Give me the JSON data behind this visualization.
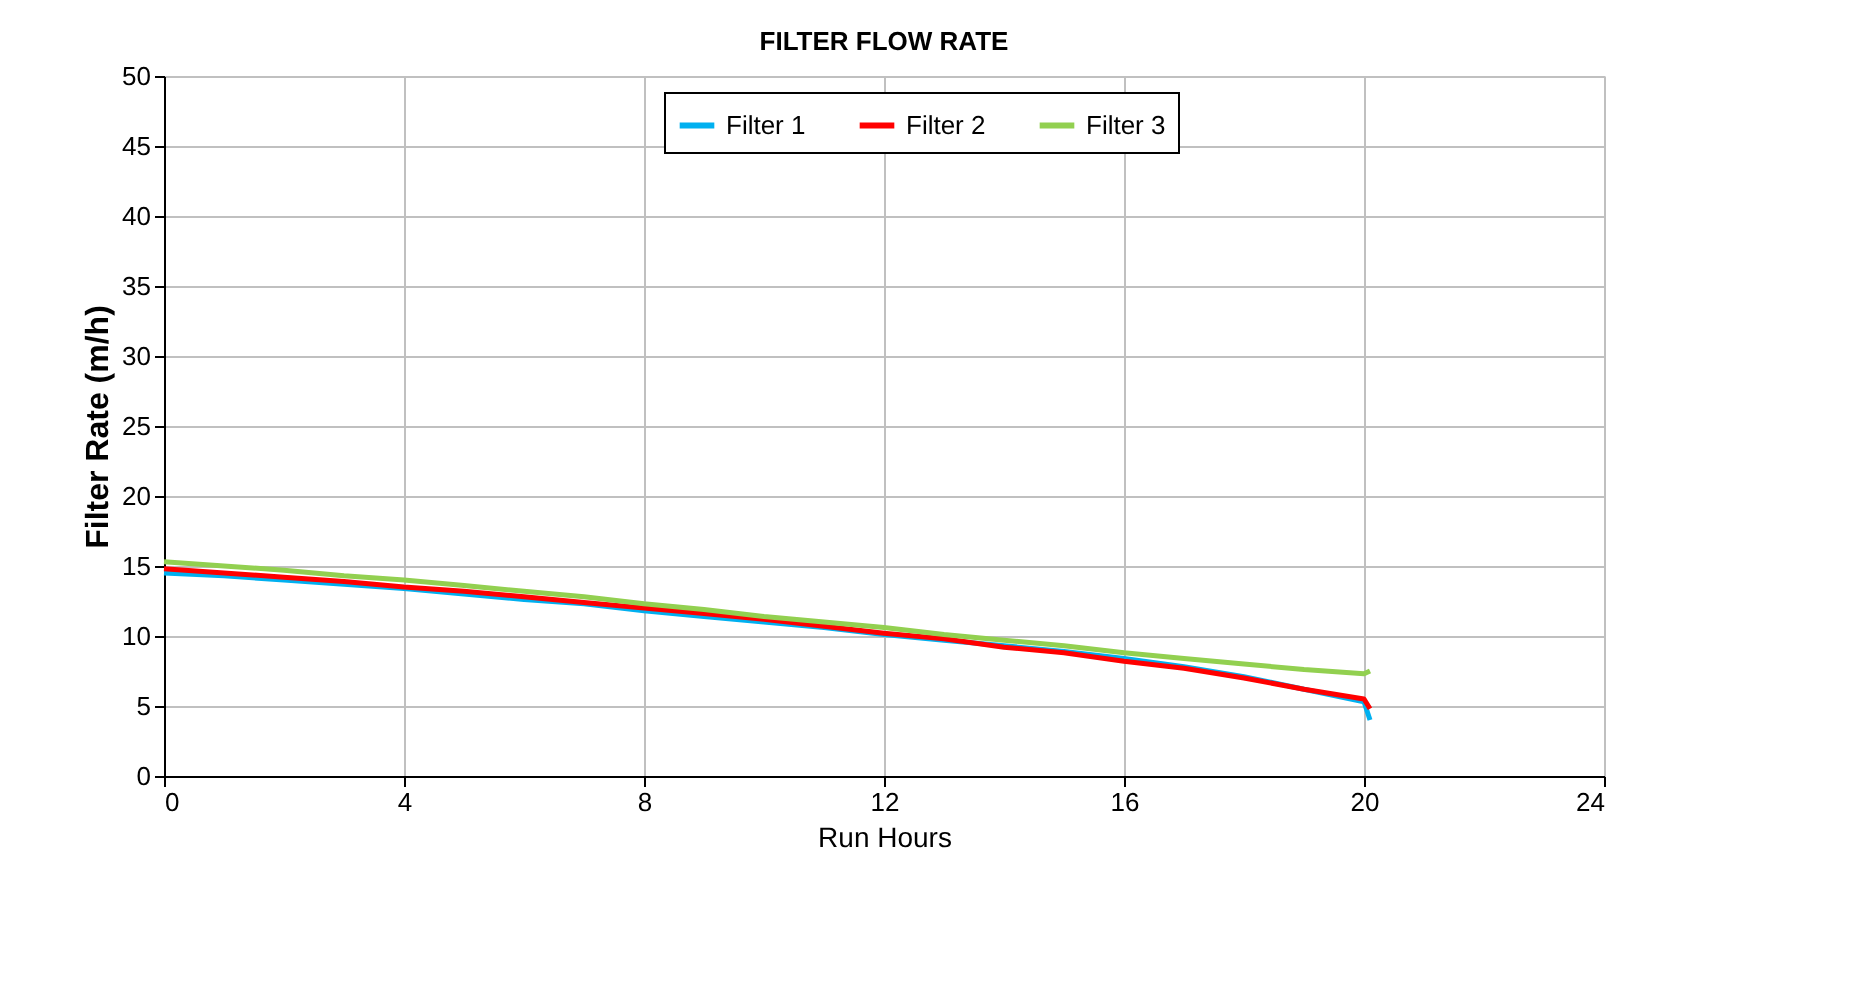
{
  "chart_data": {
    "type": "line",
    "title": "FILTER FLOW RATE",
    "xlabel": "Run Hours",
    "ylabel": "Filter Rate (m/h)",
    "x": [
      0,
      1,
      2,
      3,
      4,
      5,
      6,
      7,
      8,
      9,
      10,
      11,
      12,
      13,
      14,
      15,
      16,
      17,
      18,
      19,
      20,
      20.1
    ],
    "series": [
      {
        "name": "Filter 1",
        "color": "#00b0f0",
        "values": [
          14.5,
          14.3,
          14.0,
          13.7,
          13.4,
          13.0,
          12.6,
          12.3,
          11.8,
          11.4,
          11.0,
          10.6,
          10.1,
          9.7,
          9.3,
          8.9,
          8.4,
          7.8,
          7.1,
          6.2,
          5.3,
          4.0
        ]
      },
      {
        "name": "Filter 2",
        "color": "#ff0000",
        "values": [
          14.8,
          14.5,
          14.2,
          13.9,
          13.5,
          13.2,
          12.8,
          12.4,
          12.0,
          11.6,
          11.2,
          10.7,
          10.2,
          9.8,
          9.2,
          8.8,
          8.2,
          7.7,
          7.0,
          6.2,
          5.5,
          4.8
        ]
      },
      {
        "name": "Filter 3",
        "color": "#92d050",
        "values": [
          15.3,
          15.0,
          14.7,
          14.3,
          14.0,
          13.6,
          13.2,
          12.8,
          12.3,
          11.9,
          11.4,
          11.0,
          10.6,
          10.1,
          9.7,
          9.3,
          8.8,
          8.4,
          8.0,
          7.6,
          7.3,
          7.5
        ]
      }
    ],
    "xlim": [
      0,
      24
    ],
    "xticks": [
      0,
      4,
      8,
      12,
      16,
      20,
      24
    ],
    "ylim": [
      0,
      50
    ],
    "yticks": [
      0,
      5,
      10,
      15,
      20,
      25,
      30,
      35,
      40,
      45,
      50
    ],
    "grid": true,
    "legend": "top",
    "marker": "none",
    "line_style": "solid"
  }
}
